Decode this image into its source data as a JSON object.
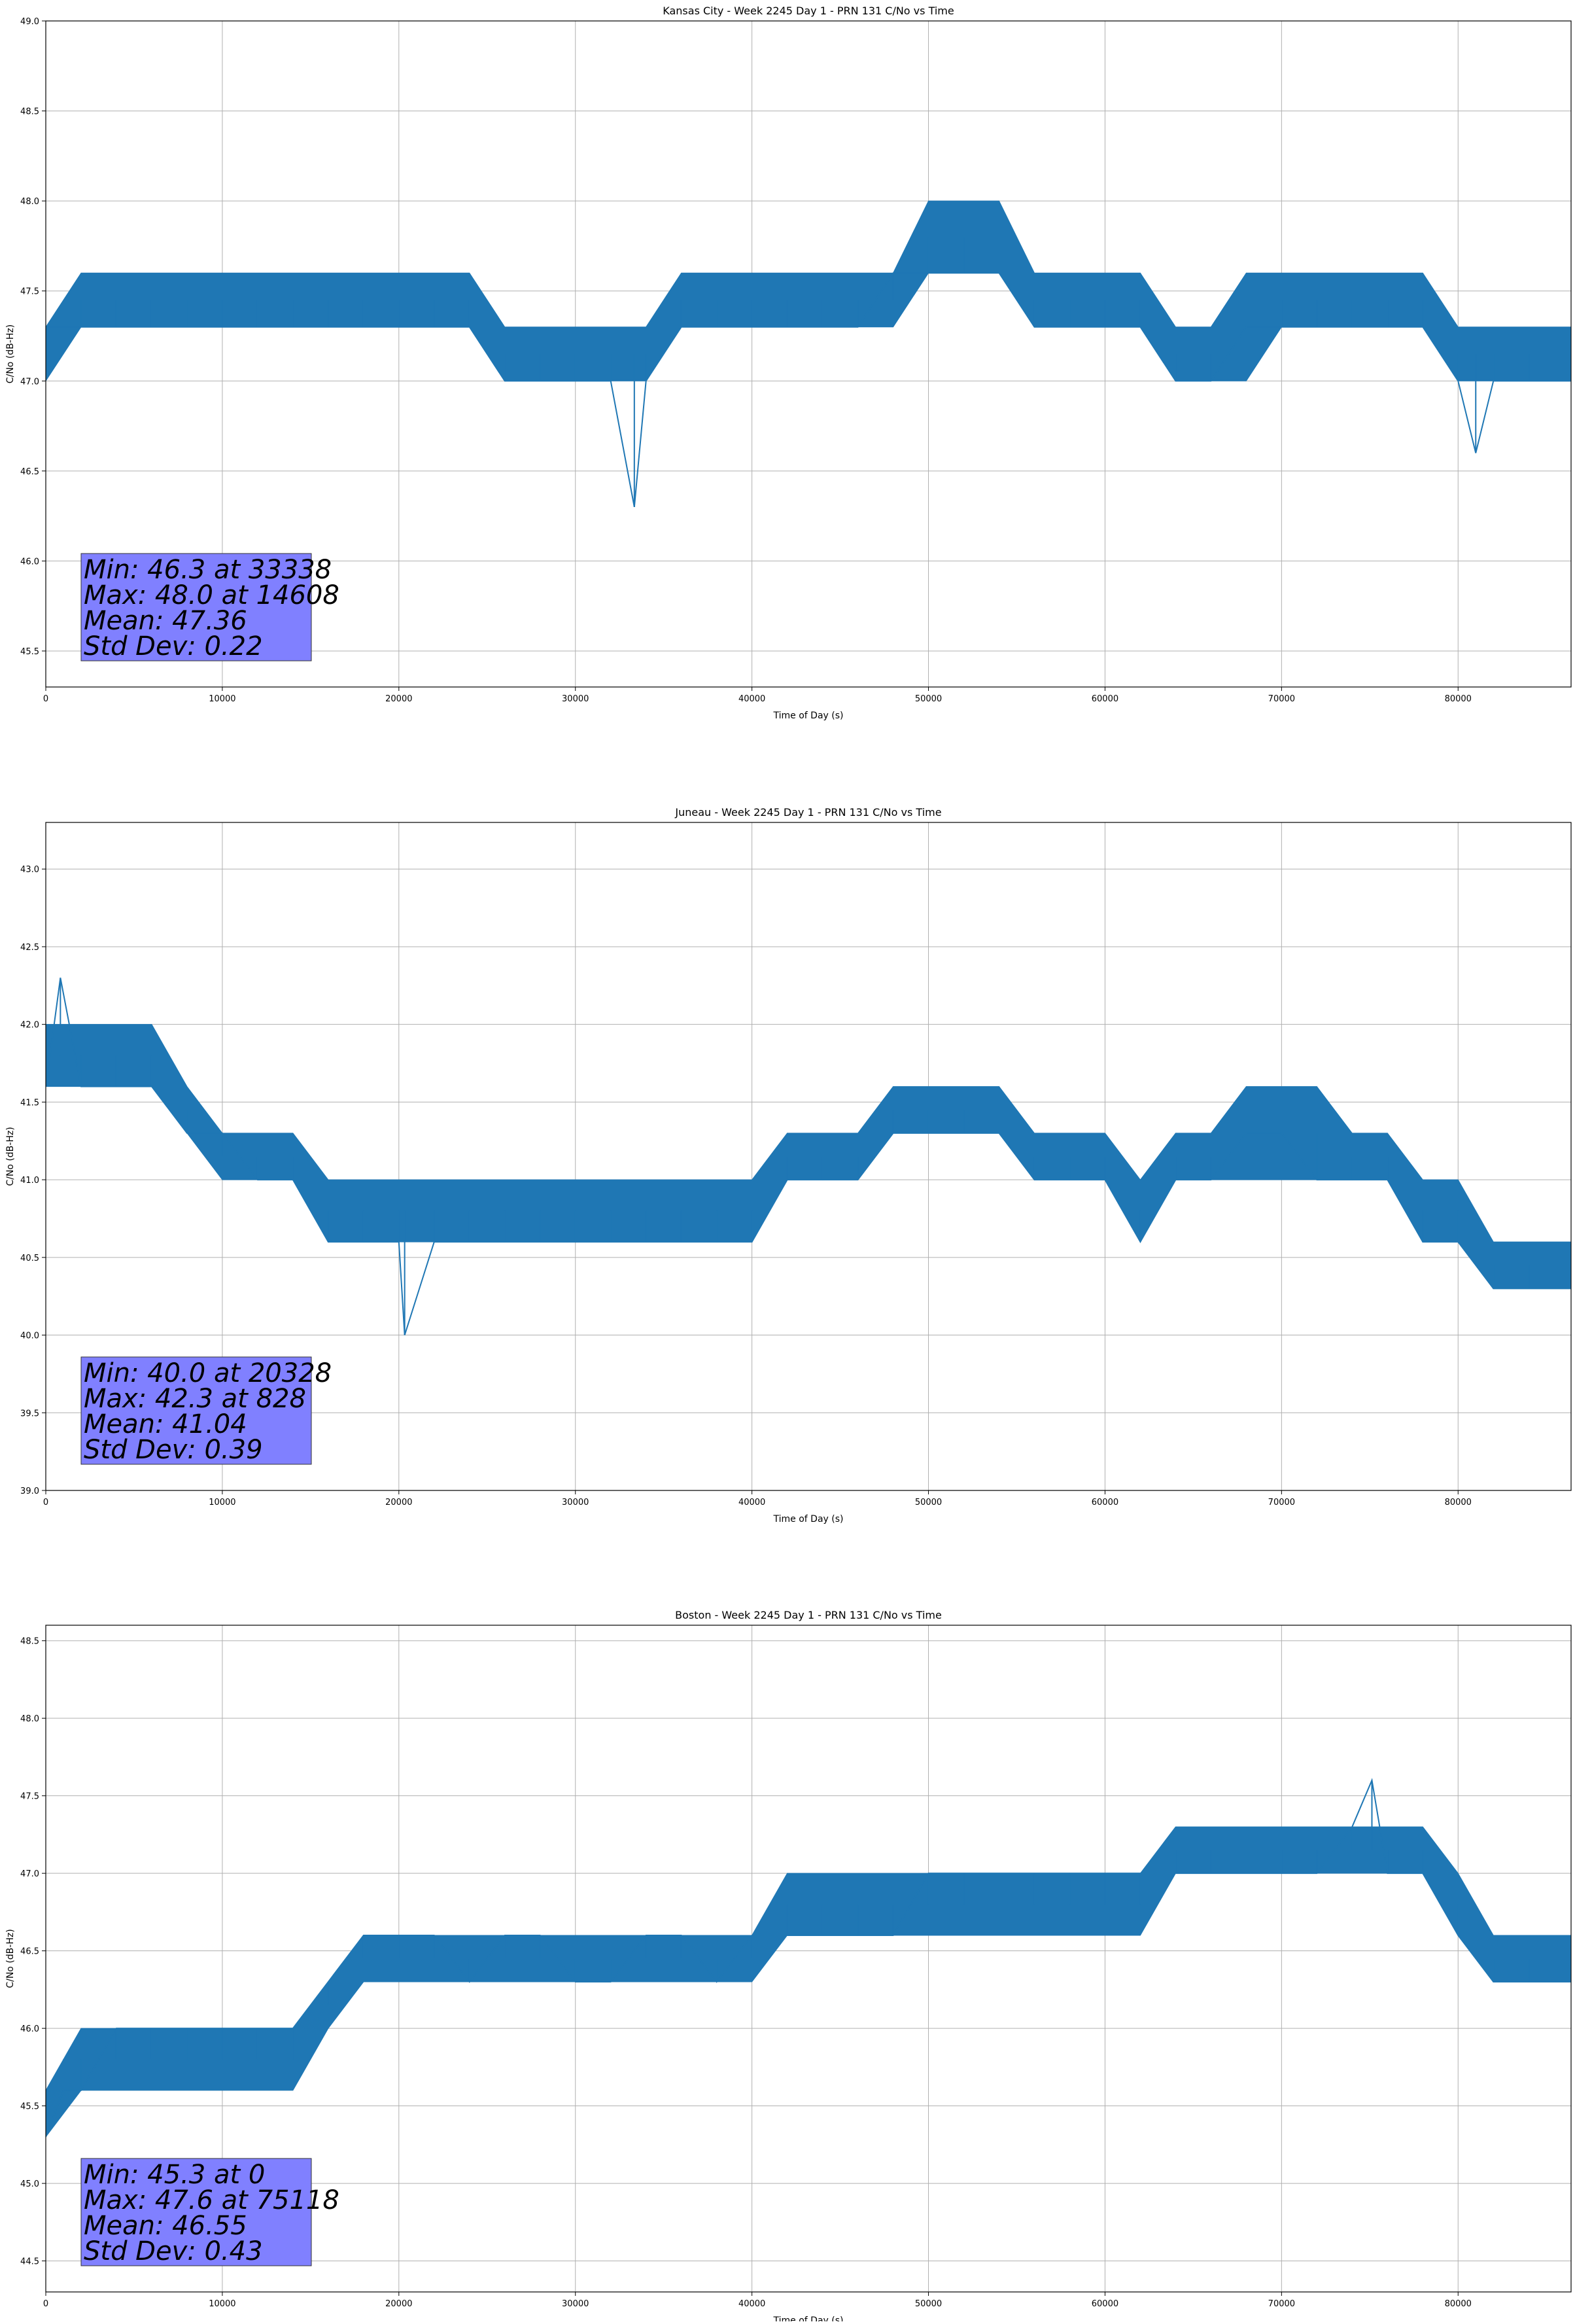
{
  "chart_data": [
    {
      "type": "line",
      "title": "Kansas City - Week 2245 Day 1 - PRN 131 C/No vs Time",
      "xlabel": "Time of Day (s)",
      "ylabel": "C/No (dB-Hz)",
      "xlim": [
        0,
        86400
      ],
      "ylim": [
        45.3,
        49.0
      ],
      "xticks": [
        0,
        10000,
        20000,
        30000,
        40000,
        50000,
        60000,
        70000,
        80000
      ],
      "yticks": [
        45.5,
        46.0,
        46.5,
        47.0,
        47.5,
        48.0,
        48.5,
        49.0
      ],
      "grid": true,
      "color": "#1f77b4",
      "stats_box_color": "#8080ff",
      "series": [
        {
          "x": [
            0,
            2000,
            4000,
            6000,
            8000,
            10000,
            12000,
            14000,
            16000,
            18000,
            20000,
            22000,
            24000,
            26000,
            28000,
            30000,
            32000,
            33338,
            34000,
            36000,
            38000,
            40000,
            42000,
            44000,
            46000,
            48000,
            50000,
            52000,
            54000,
            56000,
            58000,
            60000,
            62000,
            64000,
            66000,
            68000,
            70000,
            72000,
            74000,
            76000,
            78000,
            80000,
            81000,
            82000,
            84000,
            86400
          ],
          "y": [
            47.3,
            47.3,
            47.3,
            47.3,
            47.3,
            47.3,
            47.3,
            47.3,
            47.3,
            47.3,
            47.3,
            47.3,
            47.3,
            47.0,
            47.0,
            47.0,
            47.0,
            46.3,
            47.0,
            47.3,
            47.3,
            47.3,
            47.3,
            47.3,
            47.3,
            47.6,
            47.6,
            47.6,
            47.6,
            47.3,
            47.3,
            47.3,
            47.3,
            47.0,
            47.0,
            47.3,
            47.3,
            47.3,
            47.3,
            47.3,
            47.3,
            47.0,
            46.6,
            47.0,
            47.0,
            47.0
          ],
          "band_x": [
            0,
            2000,
            4000,
            6000,
            8000,
            10000,
            12000,
            14000,
            16000,
            18000,
            20000,
            22000,
            24000,
            26000,
            28000,
            30000,
            32000,
            34000,
            36000,
            38000,
            40000,
            42000,
            44000,
            46000,
            48000,
            50000,
            52000,
            54000,
            56000,
            58000,
            60000,
            62000,
            64000,
            66000,
            68000,
            70000,
            72000,
            74000,
            76000,
            78000,
            80000,
            82000,
            84000,
            86400
          ],
          "band_low": [
            47.0,
            47.3,
            47.3,
            47.3,
            47.3,
            47.3,
            47.3,
            47.3,
            47.3,
            47.3,
            47.3,
            47.3,
            47.3,
            47.0,
            47.0,
            47.0,
            47.0,
            47.0,
            47.3,
            47.3,
            47.3,
            47.3,
            47.3,
            47.3,
            47.3,
            47.6,
            47.6,
            47.6,
            47.3,
            47.3,
            47.3,
            47.3,
            47.0,
            47.0,
            47.0,
            47.3,
            47.3,
            47.3,
            47.3,
            47.3,
            47.0,
            47.0,
            47.0,
            47.0
          ],
          "band_high": [
            47.3,
            47.6,
            47.6,
            47.6,
            47.6,
            47.6,
            47.6,
            47.6,
            47.6,
            47.6,
            47.6,
            47.6,
            47.6,
            47.3,
            47.3,
            47.3,
            47.3,
            47.3,
            47.6,
            47.6,
            47.6,
            47.6,
            47.6,
            47.6,
            47.6,
            48.0,
            48.0,
            48.0,
            47.6,
            47.6,
            47.6,
            47.6,
            47.3,
            47.3,
            47.6,
            47.6,
            47.6,
            47.6,
            47.6,
            47.6,
            47.3,
            47.3,
            47.3,
            47.3
          ]
        }
      ],
      "stats": [
        "Min: 46.3 at 33338",
        "Max: 48.0 at 14608",
        "Mean: 47.36",
        "Std Dev: 0.22"
      ]
    },
    {
      "type": "line",
      "title": "Juneau - Week 2245 Day 1 - PRN 131 C/No vs Time",
      "xlabel": "Time of Day (s)",
      "ylabel": "C/No (dB-Hz)",
      "xlim": [
        0,
        86400
      ],
      "ylim": [
        39.0,
        43.3
      ],
      "xticks": [
        0,
        10000,
        20000,
        30000,
        40000,
        50000,
        60000,
        70000,
        80000
      ],
      "yticks": [
        39.0,
        39.5,
        40.0,
        40.5,
        41.0,
        41.5,
        42.0,
        42.5,
        43.0
      ],
      "grid": true,
      "color": "#1f77b4",
      "stats_box_color": "#8080ff",
      "series": [
        {
          "x": [
            0,
            828,
            2000,
            4000,
            6000,
            8000,
            10000,
            12000,
            14000,
            16000,
            18000,
            20000,
            20328,
            22000,
            24000,
            26000,
            28000,
            30000,
            32000,
            34000,
            36000,
            38000,
            40000,
            42000,
            44000,
            46000,
            48000,
            50000,
            52000,
            54000,
            56000,
            58000,
            60000,
            62000,
            64000,
            66000,
            68000,
            70000,
            72000,
            74000,
            76000,
            78000,
            80000,
            82000,
            84000,
            86400
          ],
          "y": [
            41.6,
            42.3,
            41.6,
            41.6,
            41.6,
            41.3,
            41.3,
            41.0,
            41.0,
            40.6,
            40.6,
            40.6,
            40.0,
            40.6,
            40.6,
            40.6,
            40.6,
            40.6,
            40.6,
            40.6,
            40.6,
            40.6,
            40.6,
            41.0,
            41.0,
            41.0,
            41.3,
            41.3,
            41.3,
            41.3,
            41.0,
            41.0,
            41.0,
            40.6,
            41.0,
            41.0,
            41.3,
            41.3,
            41.0,
            41.0,
            41.0,
            40.6,
            40.6,
            40.3,
            40.3,
            40.3
          ],
          "band_x": [
            0,
            2000,
            4000,
            6000,
            8000,
            10000,
            12000,
            14000,
            16000,
            18000,
            20000,
            22000,
            24000,
            26000,
            28000,
            30000,
            32000,
            34000,
            36000,
            38000,
            40000,
            42000,
            44000,
            46000,
            48000,
            50000,
            52000,
            54000,
            56000,
            58000,
            60000,
            62000,
            64000,
            66000,
            68000,
            70000,
            72000,
            74000,
            76000,
            78000,
            80000,
            82000,
            84000,
            86400
          ],
          "band_low": [
            41.6,
            41.6,
            41.6,
            41.6,
            41.3,
            41.0,
            41.0,
            41.0,
            40.6,
            40.6,
            40.6,
            40.6,
            40.6,
            40.6,
            40.6,
            40.6,
            40.6,
            40.6,
            40.6,
            40.6,
            40.6,
            41.0,
            41.0,
            41.0,
            41.3,
            41.3,
            41.3,
            41.3,
            41.0,
            41.0,
            41.0,
            40.6,
            41.0,
            41.0,
            41.0,
            41.0,
            41.0,
            41.0,
            41.0,
            40.6,
            40.6,
            40.3,
            40.3,
            40.3
          ],
          "band_high": [
            42.0,
            42.0,
            42.0,
            42.0,
            41.6,
            41.3,
            41.3,
            41.3,
            41.0,
            41.0,
            41.0,
            41.0,
            41.0,
            41.0,
            41.0,
            41.0,
            41.0,
            41.0,
            41.0,
            41.0,
            41.0,
            41.3,
            41.3,
            41.3,
            41.6,
            41.6,
            41.6,
            41.6,
            41.3,
            41.3,
            41.3,
            41.0,
            41.3,
            41.3,
            41.6,
            41.6,
            41.6,
            41.3,
            41.3,
            41.0,
            41.0,
            40.6,
            40.6,
            40.6
          ]
        }
      ],
      "stats": [
        "Min: 40.0 at 20328",
        "Max: 42.3 at 828",
        "Mean: 41.04",
        "Std Dev: 0.39"
      ]
    },
    {
      "type": "line",
      "title": "Boston - Week 2245 Day 1 - PRN 131 C/No vs Time",
      "xlabel": "Time of Day (s)",
      "ylabel": "C/No (dB-Hz)",
      "xlim": [
        0,
        86400
      ],
      "ylim": [
        44.3,
        48.6
      ],
      "xticks": [
        0,
        10000,
        20000,
        30000,
        40000,
        50000,
        60000,
        70000,
        80000
      ],
      "yticks": [
        44.5,
        45.0,
        45.5,
        46.0,
        46.5,
        47.0,
        47.5,
        48.0,
        48.5
      ],
      "grid": true,
      "color": "#1f77b4",
      "stats_box_color": "#8080ff",
      "series": [
        {
          "x": [
            0,
            1000,
            2000,
            4000,
            6000,
            8000,
            10000,
            12000,
            14000,
            16000,
            18000,
            20000,
            22000,
            24000,
            26000,
            28000,
            30000,
            32000,
            34000,
            36000,
            38000,
            40000,
            42000,
            44000,
            46000,
            48000,
            50000,
            52000,
            54000,
            56000,
            58000,
            60000,
            62000,
            64000,
            66000,
            68000,
            70000,
            72000,
            74000,
            75118,
            76000,
            78000,
            80000,
            82000,
            84000,
            86400
          ],
          "y": [
            45.3,
            45.6,
            45.6,
            46.0,
            46.0,
            46.0,
            46.0,
            46.0,
            46.0,
            46.3,
            46.6,
            46.6,
            46.6,
            46.3,
            46.6,
            46.6,
            46.3,
            46.3,
            46.6,
            46.6,
            46.3,
            46.6,
            46.6,
            46.6,
            46.6,
            46.6,
            47.0,
            47.0,
            47.0,
            47.0,
            47.0,
            47.0,
            47.0,
            47.0,
            47.0,
            47.0,
            47.0,
            47.0,
            47.3,
            47.6,
            47.0,
            47.0,
            46.6,
            46.3,
            46.3,
            46.3
          ],
          "band_x": [
            0,
            2000,
            4000,
            6000,
            8000,
            10000,
            12000,
            14000,
            16000,
            18000,
            20000,
            22000,
            24000,
            26000,
            28000,
            30000,
            32000,
            34000,
            36000,
            38000,
            40000,
            42000,
            44000,
            46000,
            48000,
            50000,
            52000,
            54000,
            56000,
            58000,
            60000,
            62000,
            64000,
            66000,
            68000,
            70000,
            72000,
            74000,
            76000,
            78000,
            80000,
            82000,
            84000,
            86400
          ],
          "band_low": [
            45.3,
            45.6,
            45.6,
            45.6,
            45.6,
            45.6,
            45.6,
            45.6,
            46.0,
            46.3,
            46.3,
            46.3,
            46.3,
            46.3,
            46.3,
            46.3,
            46.3,
            46.3,
            46.3,
            46.3,
            46.3,
            46.6,
            46.6,
            46.6,
            46.6,
            46.6,
            46.6,
            46.6,
            46.6,
            46.6,
            46.6,
            46.6,
            47.0,
            47.0,
            47.0,
            47.0,
            47.0,
            47.0,
            47.0,
            47.0,
            46.6,
            46.3,
            46.3,
            46.3
          ],
          "band_high": [
            45.6,
            46.0,
            46.0,
            46.0,
            46.0,
            46.0,
            46.0,
            46.0,
            46.3,
            46.6,
            46.6,
            46.6,
            46.6,
            46.6,
            46.6,
            46.6,
            46.6,
            46.6,
            46.6,
            46.6,
            46.6,
            47.0,
            47.0,
            47.0,
            47.0,
            47.0,
            47.0,
            47.0,
            47.0,
            47.0,
            47.0,
            47.0,
            47.3,
            47.3,
            47.3,
            47.3,
            47.3,
            47.3,
            47.3,
            47.3,
            47.0,
            46.6,
            46.6,
            46.6
          ]
        }
      ],
      "stats": [
        "Min: 45.3 at 0",
        "Max: 47.6 at 75118",
        "Mean: 46.55",
        "Std Dev: 0.43"
      ]
    }
  ]
}
